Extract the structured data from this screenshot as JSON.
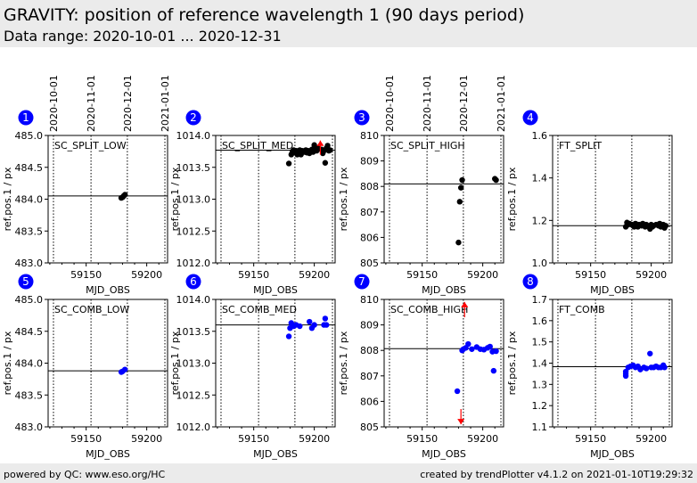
{
  "header": {
    "title": "GRAVITY: position of reference wavelength 1 (90 days period)",
    "subtitle": "Data range: 2020-10-01 ... 2020-12-31"
  },
  "footer": {
    "left": "powered by QC: www.eso.org/HC",
    "right": "created by trendPlotter v4.1.2 on 2021-01-10T19:29:32"
  },
  "colors": {
    "black": "#000000",
    "blue": "#0000ff",
    "red": "#ff0000",
    "badge": "#0000ff"
  },
  "chart_data": {
    "type": "scatter",
    "xlabel": "MJD_OBS",
    "ylabel": "ref.pos.1 / px",
    "xlim": [
      59118.6,
      59217.2
    ],
    "xticks": [
      59150,
      59200
    ],
    "date_markers": [
      {
        "label": "2020-10-01",
        "mjd": 59123
      },
      {
        "label": "2020-11-01",
        "mjd": 59154
      },
      {
        "label": "2020-12-01",
        "mjd": 59184
      },
      {
        "label": "2021-01-01",
        "mjd": 59215
      }
    ],
    "panels": [
      {
        "id": "1",
        "name": "SC_SPLIT_LOW",
        "color": "black",
        "ylim": [
          483,
          485
        ],
        "yticks": [
          "483.0",
          "483.5",
          "484.0",
          "484.5",
          "485.0"
        ],
        "ref": 484.05,
        "points": [
          [
            59179,
            484.02
          ],
          [
            59180,
            484.03
          ],
          [
            59181,
            484.05
          ],
          [
            59182,
            484.07
          ]
        ],
        "arrows": []
      },
      {
        "id": "2",
        "name": "SC_SPLIT_MED",
        "color": "black",
        "ylim": [
          1012,
          1014
        ],
        "yticks": [
          "1012.0",
          "1012.5",
          "1013.0",
          "1013.5",
          "1014.0"
        ],
        "ref": 1013.77,
        "points": [
          [
            59179,
            1013.56
          ],
          [
            59181,
            1013.7
          ],
          [
            59182,
            1013.75
          ],
          [
            59183,
            1013.77
          ],
          [
            59184,
            1013.73
          ],
          [
            59185,
            1013.76
          ],
          [
            59186,
            1013.7
          ],
          [
            59187,
            1013.75
          ],
          [
            59188,
            1013.77
          ],
          [
            59189,
            1013.7
          ],
          [
            59190,
            1013.76
          ],
          [
            59191,
            1013.75
          ],
          [
            59192,
            1013.74
          ],
          [
            59193,
            1013.77
          ],
          [
            59194,
            1013.73
          ],
          [
            59195,
            1013.76
          ],
          [
            59196,
            1013.72
          ],
          [
            59197,
            1013.75
          ],
          [
            59198,
            1013.78
          ],
          [
            59199,
            1013.74
          ],
          [
            59200,
            1013.85
          ],
          [
            59201,
            1013.78
          ],
          [
            59202,
            1013.76
          ],
          [
            59203,
            1013.8
          ],
          [
            59206,
            1013.78
          ],
          [
            59207,
            1013.72
          ],
          [
            59208,
            1013.76
          ],
          [
            59209,
            1013.57
          ],
          [
            59210,
            1013.8
          ],
          [
            59211,
            1013.84
          ],
          [
            59212,
            1013.76
          ],
          [
            59213,
            1013.77
          ]
        ],
        "arrows": [
          [
            59205,
            1013.7,
            1013.92
          ]
        ]
      },
      {
        "id": "3",
        "name": "SC_SPLIT_HIGH",
        "color": "black",
        "ylim": [
          805,
          810
        ],
        "yticks": [
          "805",
          "806",
          "807",
          "808",
          "809",
          "810"
        ],
        "ref": 808.1,
        "points": [
          [
            59180,
            805.8
          ],
          [
            59181,
            807.4
          ],
          [
            59182,
            807.95
          ],
          [
            59183,
            808.25
          ],
          [
            59210,
            808.3
          ],
          [
            59211,
            808.25
          ]
        ],
        "arrows": []
      },
      {
        "id": "4",
        "name": "FT_SPLIT",
        "color": "black",
        "ylim": [
          1.0,
          1.6
        ],
        "yticks": [
          "1.0",
          "1.2",
          "1.4",
          "1.6"
        ],
        "ref": 1.175,
        "points": [
          [
            59179,
            1.17
          ],
          [
            59180,
            1.19
          ],
          [
            59181,
            1.18
          ],
          [
            59182,
            1.185
          ],
          [
            59184,
            1.18
          ],
          [
            59185,
            1.175
          ],
          [
            59186,
            1.17
          ],
          [
            59187,
            1.185
          ],
          [
            59188,
            1.18
          ],
          [
            59189,
            1.17
          ],
          [
            59190,
            1.18
          ],
          [
            59192,
            1.175
          ],
          [
            59193,
            1.185
          ],
          [
            59195,
            1.17
          ],
          [
            59196,
            1.18
          ],
          [
            59197,
            1.175
          ],
          [
            59199,
            1.16
          ],
          [
            59200,
            1.18
          ],
          [
            59201,
            1.17
          ],
          [
            59202,
            1.175
          ],
          [
            59204,
            1.18
          ],
          [
            59206,
            1.175
          ],
          [
            59207,
            1.185
          ],
          [
            59208,
            1.17
          ],
          [
            59210,
            1.18
          ],
          [
            59211,
            1.165
          ],
          [
            59212,
            1.175
          ]
        ],
        "arrows": []
      },
      {
        "id": "5",
        "name": "SC_COMB_LOW",
        "color": "blue",
        "ylim": [
          483,
          485
        ],
        "yticks": [
          "483.0",
          "483.5",
          "484.0",
          "484.5",
          "485.0"
        ],
        "ref": 483.88,
        "points": [
          [
            59179,
            483.86
          ],
          [
            59180,
            483.87
          ],
          [
            59182,
            483.9
          ]
        ],
        "arrows": []
      },
      {
        "id": "6",
        "name": "SC_COMB_MED",
        "color": "blue",
        "ylim": [
          1012,
          1014
        ],
        "yticks": [
          "1012.0",
          "1012.5",
          "1013.0",
          "1013.5",
          "1014.0"
        ],
        "ref": 1013.6,
        "points": [
          [
            59179,
            1013.42
          ],
          [
            59180,
            1013.55
          ],
          [
            59181,
            1013.63
          ],
          [
            59183,
            1013.58
          ],
          [
            59185,
            1013.6
          ],
          [
            59188,
            1013.58
          ],
          [
            59196,
            1013.65
          ],
          [
            59198,
            1013.55
          ],
          [
            59200,
            1013.6
          ],
          [
            59208,
            1013.6
          ],
          [
            59209,
            1013.7
          ],
          [
            59210,
            1013.6
          ]
        ],
        "arrows": []
      },
      {
        "id": "7",
        "name": "SC_COMB_HIGH",
        "color": "blue",
        "ylim": [
          805,
          810
        ],
        "yticks": [
          "805",
          "806",
          "807",
          "808",
          "809",
          "810"
        ],
        "ref": 808.07,
        "points": [
          [
            59179,
            806.4
          ],
          [
            59183,
            808.0
          ],
          [
            59184,
            808.05
          ],
          [
            59186,
            808.1
          ],
          [
            59188,
            808.25
          ],
          [
            59191,
            808.05
          ],
          [
            59195,
            808.13
          ],
          [
            59198,
            808.05
          ],
          [
            59201,
            808.03
          ],
          [
            59204,
            808.1
          ],
          [
            59206,
            808.15
          ],
          [
            59208,
            807.95
          ],
          [
            59209,
            807.2
          ],
          [
            59211,
            807.97
          ]
        ],
        "arrows": [
          [
            59185,
            809.3,
            809.9
          ],
          [
            59182,
            805.7,
            805.1
          ]
        ]
      },
      {
        "id": "8",
        "name": "FT_COMB",
        "color": "blue",
        "ylim": [
          1.1,
          1.7
        ],
        "yticks": [
          "1.1",
          "1.2",
          "1.3",
          "1.4",
          "1.5",
          "1.6",
          "1.7"
        ],
        "ref": 1.383,
        "points": [
          [
            59179,
            1.34
          ],
          [
            59179,
            1.35
          ],
          [
            59179,
            1.36
          ],
          [
            59181,
            1.38
          ],
          [
            59183,
            1.385
          ],
          [
            59185,
            1.39
          ],
          [
            59187,
            1.38
          ],
          [
            59189,
            1.385
          ],
          [
            59191,
            1.37
          ],
          [
            59194,
            1.38
          ],
          [
            59196,
            1.375
          ],
          [
            59199,
            1.445
          ],
          [
            59200,
            1.38
          ],
          [
            59202,
            1.38
          ],
          [
            59204,
            1.385
          ],
          [
            59206,
            1.38
          ],
          [
            59208,
            1.38
          ],
          [
            59210,
            1.39
          ],
          [
            59211,
            1.38
          ]
        ],
        "arrows": []
      }
    ]
  }
}
